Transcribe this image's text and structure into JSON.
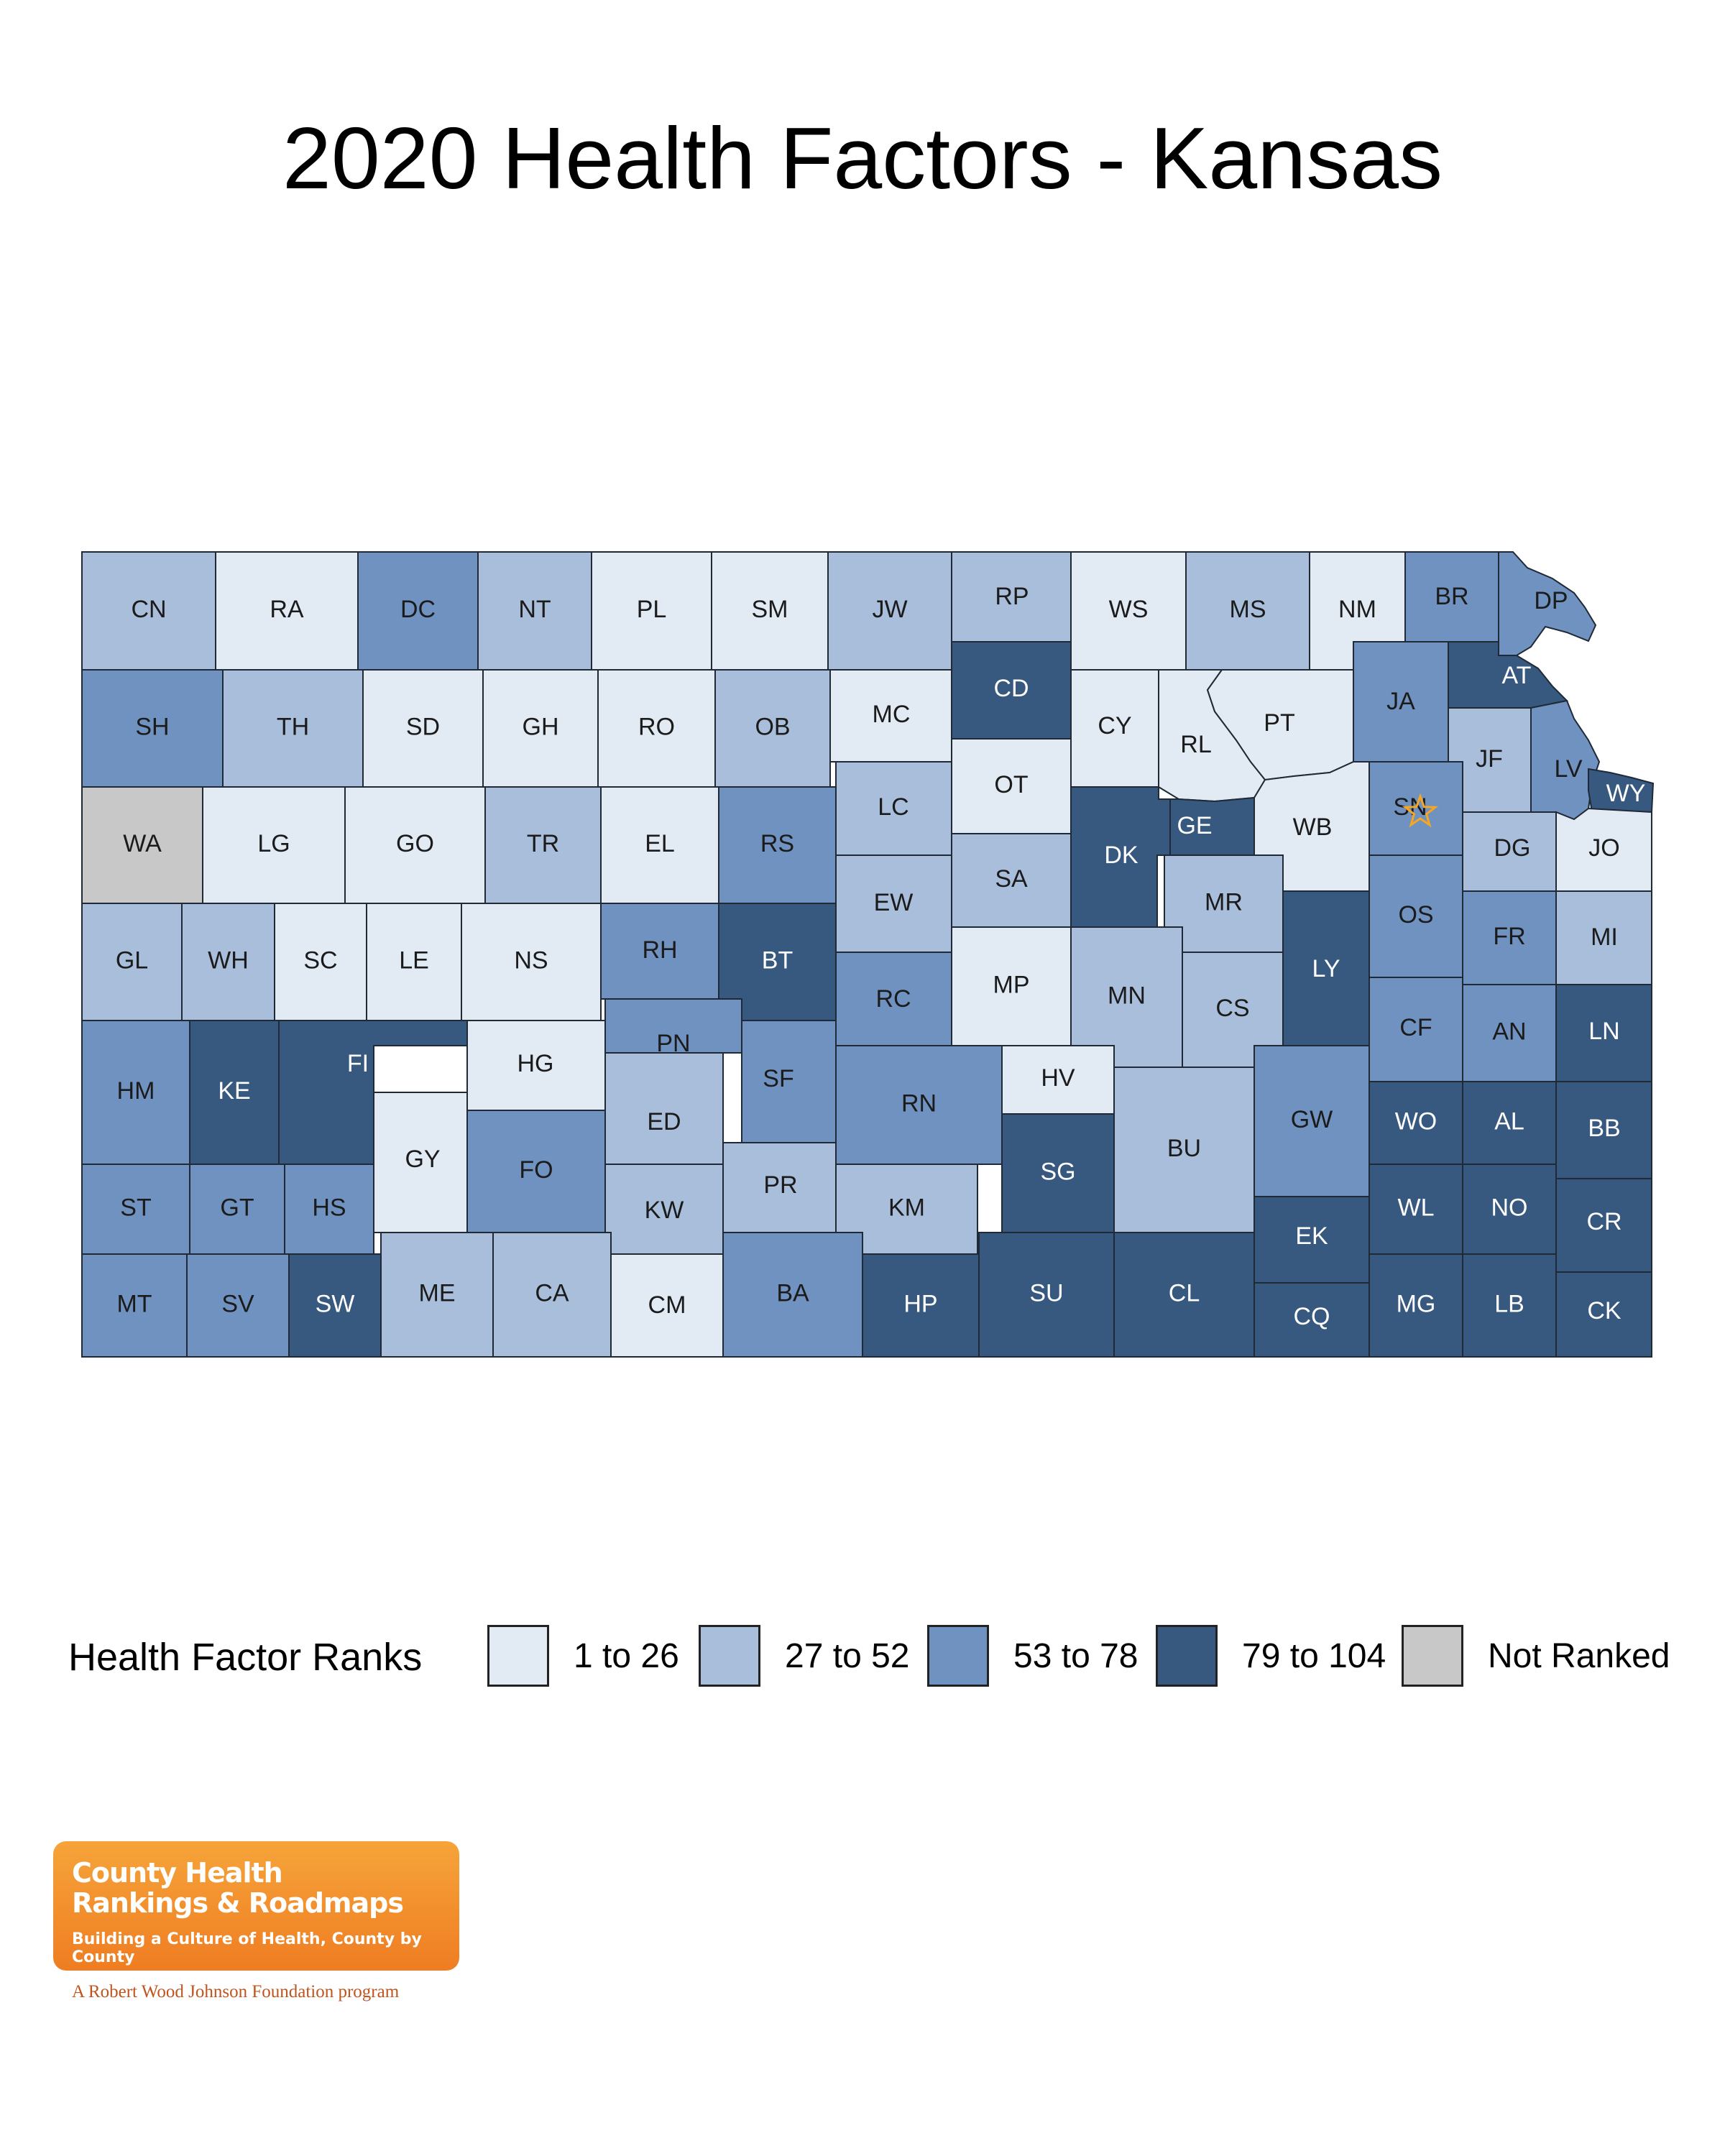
{
  "title": "2020 Health Factors - Kansas",
  "legend": {
    "title": "Health Factor Ranks",
    "items": [
      {
        "key": "1",
        "label": "1 to 26",
        "color": "#e2eaf4"
      },
      {
        "key": "2",
        "label": "27 to 52",
        "color": "#a8bedb"
      },
      {
        "key": "3",
        "label": "53 to 78",
        "color": "#7092c1"
      },
      {
        "key": "4",
        "label": "79 to 104",
        "color": "#37587f"
      },
      {
        "key": "nr",
        "label": "Not Ranked",
        "color": "#c8c8c8"
      }
    ]
  },
  "capital_marker": {
    "county": "SN",
    "color": "#f5a623"
  },
  "counties": [
    {
      "abbr": "CN",
      "cls": "2"
    },
    {
      "abbr": "RA",
      "cls": "1"
    },
    {
      "abbr": "DC",
      "cls": "3"
    },
    {
      "abbr": "NT",
      "cls": "2"
    },
    {
      "abbr": "PL",
      "cls": "1"
    },
    {
      "abbr": "SM",
      "cls": "1"
    },
    {
      "abbr": "JW",
      "cls": "2"
    },
    {
      "abbr": "RP",
      "cls": "2"
    },
    {
      "abbr": "WS",
      "cls": "1"
    },
    {
      "abbr": "MS",
      "cls": "2"
    },
    {
      "abbr": "NM",
      "cls": "1"
    },
    {
      "abbr": "BR",
      "cls": "3"
    },
    {
      "abbr": "DP",
      "cls": "3"
    },
    {
      "abbr": "SH",
      "cls": "3"
    },
    {
      "abbr": "TH",
      "cls": "2"
    },
    {
      "abbr": "SD",
      "cls": "1"
    },
    {
      "abbr": "GH",
      "cls": "1"
    },
    {
      "abbr": "RO",
      "cls": "1"
    },
    {
      "abbr": "OB",
      "cls": "2"
    },
    {
      "abbr": "MC",
      "cls": "1"
    },
    {
      "abbr": "CD",
      "cls": "4"
    },
    {
      "abbr": "OT",
      "cls": "1"
    },
    {
      "abbr": "CY",
      "cls": "1"
    },
    {
      "abbr": "RL",
      "cls": "1"
    },
    {
      "abbr": "PT",
      "cls": "1"
    },
    {
      "abbr": "JA",
      "cls": "3"
    },
    {
      "abbr": "AT",
      "cls": "4"
    },
    {
      "abbr": "JF",
      "cls": "2"
    },
    {
      "abbr": "LV",
      "cls": "3"
    },
    {
      "abbr": "WY",
      "cls": "4"
    },
    {
      "abbr": "WA",
      "cls": "nr"
    },
    {
      "abbr": "LG",
      "cls": "1"
    },
    {
      "abbr": "GO",
      "cls": "1"
    },
    {
      "abbr": "TR",
      "cls": "2"
    },
    {
      "abbr": "EL",
      "cls": "1"
    },
    {
      "abbr": "RS",
      "cls": "3"
    },
    {
      "abbr": "LC",
      "cls": "2"
    },
    {
      "abbr": "SA",
      "cls": "2"
    },
    {
      "abbr": "DK",
      "cls": "4"
    },
    {
      "abbr": "GE",
      "cls": "4"
    },
    {
      "abbr": "WB",
      "cls": "1"
    },
    {
      "abbr": "SN",
      "cls": "3"
    },
    {
      "abbr": "DG",
      "cls": "2"
    },
    {
      "abbr": "JO",
      "cls": "1"
    },
    {
      "abbr": "GL",
      "cls": "2"
    },
    {
      "abbr": "WH",
      "cls": "2"
    },
    {
      "abbr": "SC",
      "cls": "1"
    },
    {
      "abbr": "LE",
      "cls": "1"
    },
    {
      "abbr": "NS",
      "cls": "1"
    },
    {
      "abbr": "RH",
      "cls": "3"
    },
    {
      "abbr": "BT",
      "cls": "4"
    },
    {
      "abbr": "EW",
      "cls": "2"
    },
    {
      "abbr": "MR",
      "cls": "2"
    },
    {
      "abbr": "OS",
      "cls": "3"
    },
    {
      "abbr": "FR",
      "cls": "3"
    },
    {
      "abbr": "MI",
      "cls": "2"
    },
    {
      "abbr": "RC",
      "cls": "3"
    },
    {
      "abbr": "MP",
      "cls": "1"
    },
    {
      "abbr": "MN",
      "cls": "2"
    },
    {
      "abbr": "CS",
      "cls": "2"
    },
    {
      "abbr": "LY",
      "cls": "4"
    },
    {
      "abbr": "CF",
      "cls": "3"
    },
    {
      "abbr": "AN",
      "cls": "3"
    },
    {
      "abbr": "LN",
      "cls": "4"
    },
    {
      "abbr": "HM",
      "cls": "3"
    },
    {
      "abbr": "KE",
      "cls": "4"
    },
    {
      "abbr": "FI",
      "cls": "4"
    },
    {
      "abbr": "HG",
      "cls": "1"
    },
    {
      "abbr": "PN",
      "cls": "3"
    },
    {
      "abbr": "SF",
      "cls": "3"
    },
    {
      "abbr": "RN",
      "cls": "3"
    },
    {
      "abbr": "HV",
      "cls": "1"
    },
    {
      "abbr": "GY",
      "cls": "1"
    },
    {
      "abbr": "FO",
      "cls": "3"
    },
    {
      "abbr": "ED",
      "cls": "2"
    },
    {
      "abbr": "SG",
      "cls": "4"
    },
    {
      "abbr": "BU",
      "cls": "2"
    },
    {
      "abbr": "GW",
      "cls": "3"
    },
    {
      "abbr": "WO",
      "cls": "4"
    },
    {
      "abbr": "AL",
      "cls": "4"
    },
    {
      "abbr": "BB",
      "cls": "4"
    },
    {
      "abbr": "ST",
      "cls": "3"
    },
    {
      "abbr": "GT",
      "cls": "3"
    },
    {
      "abbr": "HS",
      "cls": "3"
    },
    {
      "abbr": "KW",
      "cls": "2"
    },
    {
      "abbr": "PR",
      "cls": "2"
    },
    {
      "abbr": "KM",
      "cls": "2"
    },
    {
      "abbr": "EK",
      "cls": "4"
    },
    {
      "abbr": "WL",
      "cls": "4"
    },
    {
      "abbr": "NO",
      "cls": "4"
    },
    {
      "abbr": "CR",
      "cls": "4"
    },
    {
      "abbr": "MT",
      "cls": "3"
    },
    {
      "abbr": "SV",
      "cls": "3"
    },
    {
      "abbr": "SW",
      "cls": "4"
    },
    {
      "abbr": "ME",
      "cls": "2"
    },
    {
      "abbr": "CA",
      "cls": "2"
    },
    {
      "abbr": "CM",
      "cls": "1"
    },
    {
      "abbr": "BA",
      "cls": "3"
    },
    {
      "abbr": "HP",
      "cls": "4"
    },
    {
      "abbr": "SU",
      "cls": "4"
    },
    {
      "abbr": "CL",
      "cls": "4"
    },
    {
      "abbr": "CQ",
      "cls": "4"
    },
    {
      "abbr": "MG",
      "cls": "4"
    },
    {
      "abbr": "LB",
      "cls": "4"
    },
    {
      "abbr": "CK",
      "cls": "4"
    }
  ],
  "logo": {
    "line1": "County Health",
    "line2": "Rankings & Roadmaps",
    "tagline": "Building a Culture of Health, County by County",
    "sub": "A Robert Wood Johnson Foundation program"
  }
}
